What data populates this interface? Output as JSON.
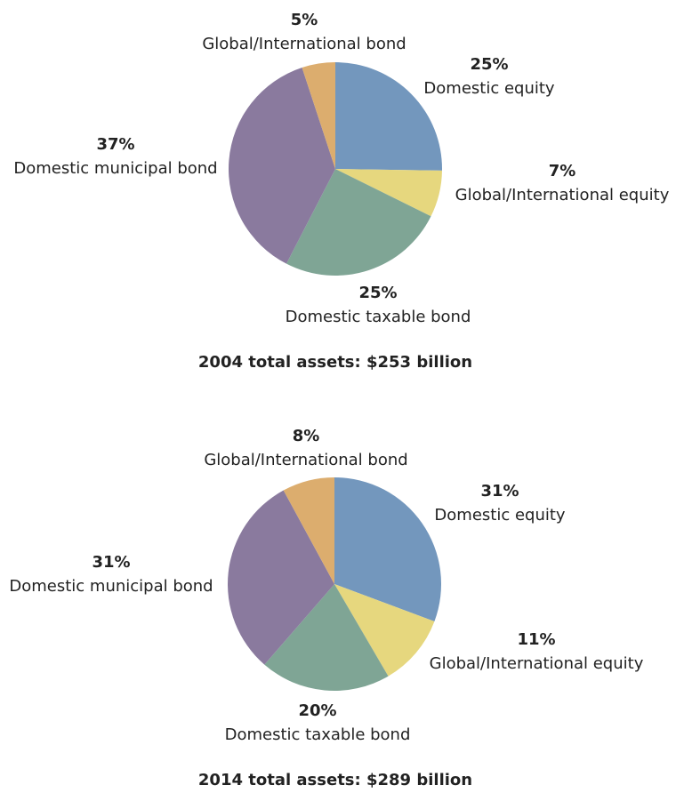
{
  "chart_data": [
    {
      "type": "pie",
      "title": "2004 total assets: $253 billion",
      "categories": [
        "Domestic equity",
        "Global/International equity",
        "Domestic taxable bond",
        "Domestic municipal bond",
        "Global/International bond"
      ],
      "values": [
        25,
        7,
        25,
        37,
        5
      ],
      "value_labels": [
        "25%",
        "7%",
        "25%",
        "37%",
        "5%"
      ],
      "colors": [
        "#7397bd",
        "#e6d77e",
        "#7fa595",
        "#8a7a9e",
        "#dcad6e"
      ]
    },
    {
      "type": "pie",
      "title": "2014 total assets: $289 billion",
      "categories": [
        "Domestic equity",
        "Global/International equity",
        "Domestic taxable bond",
        "Domestic municipal bond",
        "Global/International bond"
      ],
      "values": [
        31,
        11,
        20,
        31,
        8
      ],
      "value_labels": [
        "31%",
        "11%",
        "20%",
        "31%",
        "8%"
      ],
      "colors": [
        "#7397bd",
        "#e6d77e",
        "#7fa595",
        "#8a7a9e",
        "#dcad6e"
      ]
    }
  ]
}
